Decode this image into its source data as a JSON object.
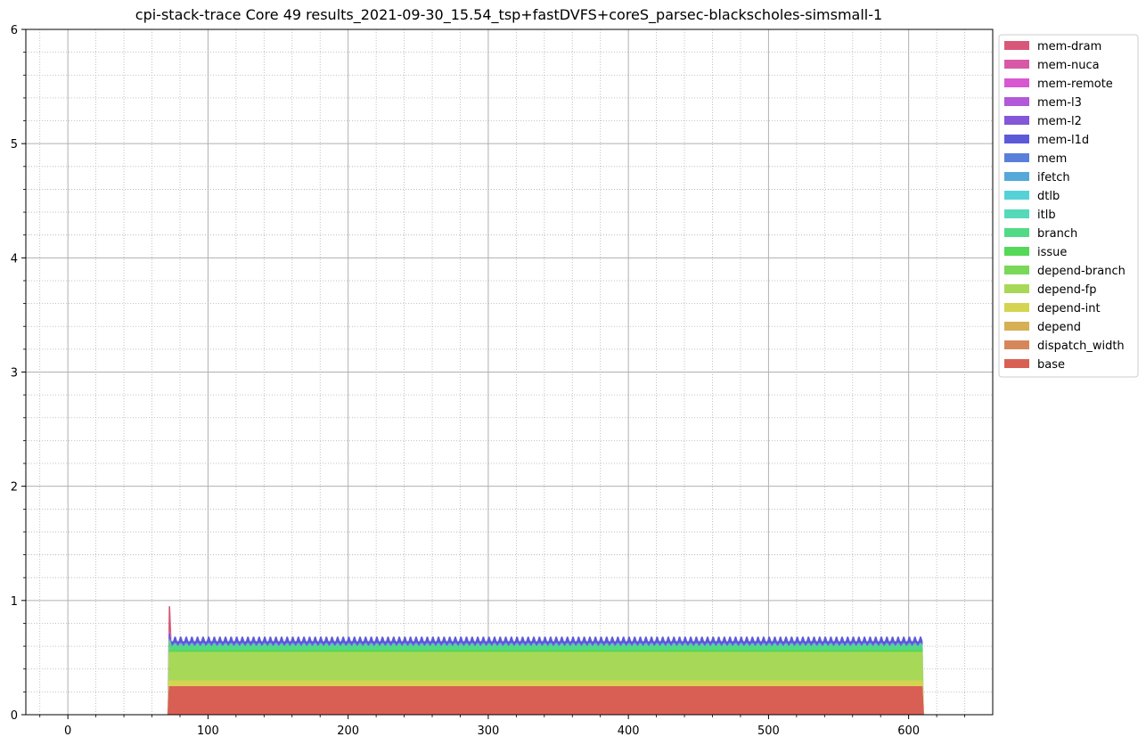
{
  "chart_data": {
    "type": "area",
    "stacked": true,
    "title": "cpi-stack-trace Core 49 results_2021-09-30_15.54_tsp+fastDVFS+coreS_parsec-blackscholes-simsmall-1",
    "xlabel": "",
    "ylabel": "",
    "xlim": [
      -30,
      660
    ],
    "ylim": [
      0,
      6
    ],
    "xticks": [
      0,
      100,
      200,
      300,
      400,
      500,
      600
    ],
    "yticks": [
      0,
      1,
      2,
      3,
      4,
      5,
      6
    ],
    "grid": true,
    "minor_grid": true,
    "legend_position": "outside-top-right",
    "x_range": [
      72,
      610
    ],
    "series": [
      {
        "name": "base",
        "color": "#d95f55",
        "value": 0.25,
        "spike": 0.25
      },
      {
        "name": "dispatch_width",
        "color": "#d6875a",
        "value": 0.0,
        "spike": 0.0
      },
      {
        "name": "depend",
        "color": "#d6b054",
        "value": 0.0,
        "spike": 0.0
      },
      {
        "name": "depend-int",
        "color": "#d4d452",
        "value": 0.05,
        "spike": 0.05
      },
      {
        "name": "depend-fp",
        "color": "#a8d858",
        "value": 0.25,
        "spike": 0.25
      },
      {
        "name": "depend-branch",
        "color": "#79d858",
        "value": 0.0,
        "spike": 0.0
      },
      {
        "name": "issue",
        "color": "#56d858",
        "value": 0.02,
        "spike": 0.03
      },
      {
        "name": "branch",
        "color": "#52d985",
        "value": 0.04,
        "spike": 0.07
      },
      {
        "name": "itlb",
        "color": "#55d9b8",
        "value": 0.0,
        "spike": 0.0
      },
      {
        "name": "dtlb",
        "color": "#55d2d8",
        "value": 0.0,
        "spike": 0.0
      },
      {
        "name": "ifetch",
        "color": "#56a8d8",
        "value": 0.0,
        "spike": 0.0
      },
      {
        "name": "mem",
        "color": "#5a7fdb",
        "value": 0.01,
        "spike": 0.01
      },
      {
        "name": "mem-l1d",
        "color": "#5c5ad8",
        "value": 0.04,
        "spike": 0.05
      },
      {
        "name": "mem-l2",
        "color": "#8456d8",
        "value": 0.0,
        "spike": 0.0
      },
      {
        "name": "mem-l3",
        "color": "#b258d8",
        "value": 0.0,
        "spike": 0.0
      },
      {
        "name": "mem-remote",
        "color": "#d858d2",
        "value": 0.0,
        "spike": 0.0
      },
      {
        "name": "mem-nuca",
        "color": "#d858a8",
        "value": 0.0,
        "spike": 0.02
      },
      {
        "name": "mem-dram",
        "color": "#d85778",
        "value": 0.0,
        "spike": 0.22
      }
    ],
    "legend": [
      "mem-dram",
      "mem-nuca",
      "mem-remote",
      "mem-l3",
      "mem-l2",
      "mem-l1d",
      "mem",
      "ifetch",
      "dtlb",
      "itlb",
      "branch",
      "issue",
      "depend-branch",
      "depend-fp",
      "depend-int",
      "depend",
      "dispatch_width",
      "base"
    ]
  }
}
